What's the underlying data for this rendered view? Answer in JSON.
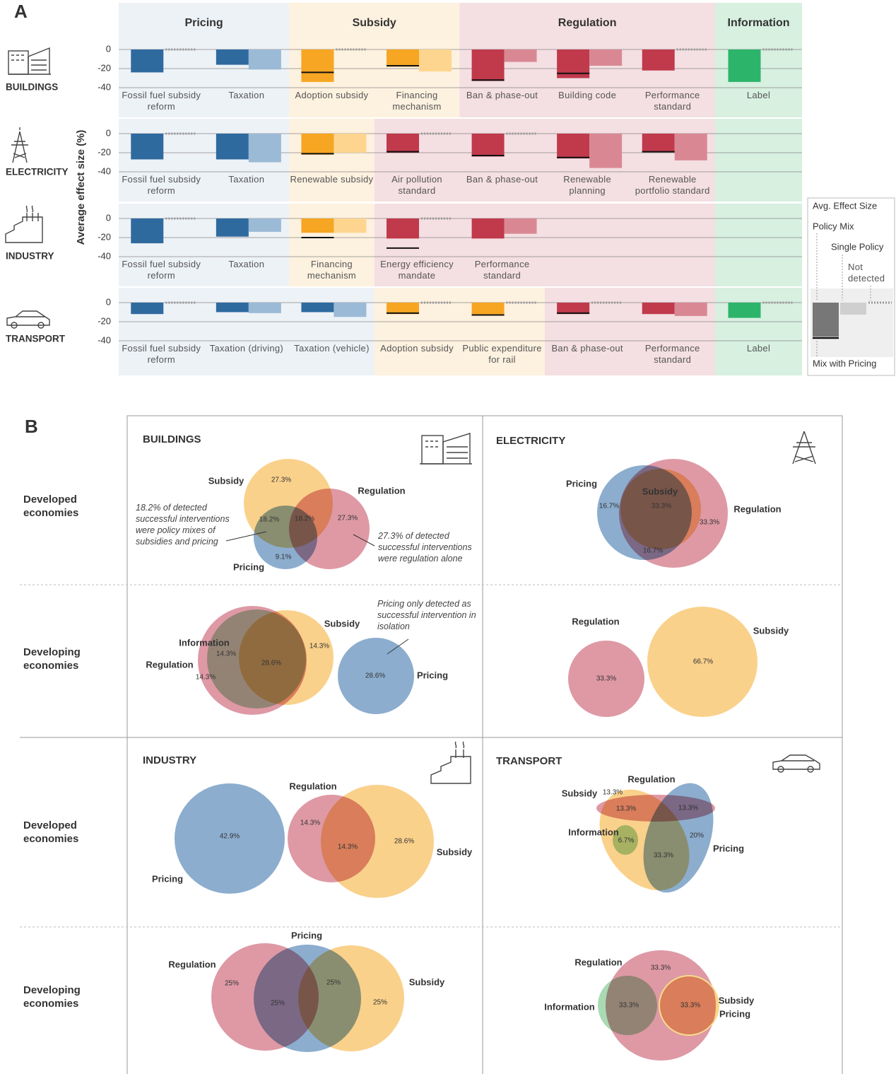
{
  "chart_data": {
    "type": "bar",
    "panel": "A",
    "y_label": "Average effect size (%)",
    "ylim": [
      -40,
      0
    ],
    "yticks": [
      0,
      -20,
      -40
    ],
    "grid": true,
    "groups": [
      "Pricing",
      "Subsidy",
      "Regulation",
      "Information"
    ],
    "group_colors": [
      {
        "mix": "#2f6a9f",
        "single": "#9bbad6",
        "background": "#edf2f7"
      },
      {
        "mix": "#f6a623",
        "single": "#fdd58e",
        "background": "#fdf1df"
      },
      {
        "mix": "#c03a4c",
        "single": "#d98893",
        "background": "#f4dfe2"
      },
      {
        "mix": "#2db46b",
        "single": "#9ddbb5",
        "background": "#d7f0e0"
      }
    ],
    "legend": {
      "title": "Avg. Effect Size",
      "policy_mix": "Policy Mix",
      "single_policy": "Single Policy",
      "not_detected": "Not detected",
      "mix_with_pricing": "Mix with Pricing"
    },
    "rows": [
      {
        "sector": "BUILDINGS",
        "groups": [
          {
            "categories": [
              "Fossil fuel subsidy reform",
              "Taxation"
            ],
            "mix": [
              -24,
              -16
            ],
            "single": [
              null,
              -21
            ],
            "mix_with_pricing": [
              null,
              null
            ]
          },
          {
            "categories": [
              "Adoption subsidy",
              "Financing mechanism"
            ],
            "mix": [
              -34,
              -18
            ],
            "single": [
              null,
              -23
            ],
            "mix_with_pricing": [
              -24,
              -17
            ]
          },
          {
            "categories": [
              "Ban & phase-out",
              "Building code",
              "Performance standard"
            ],
            "mix": [
              -33,
              -30,
              -22
            ],
            "single": [
              -13,
              -17,
              null
            ],
            "mix_with_pricing": [
              -32,
              -25,
              null
            ]
          },
          {
            "categories": [
              "Label"
            ],
            "mix": [
              -34
            ],
            "single": [
              null
            ],
            "mix_with_pricing": [
              null
            ]
          }
        ]
      },
      {
        "sector": "ELECTRICITY",
        "groups": [
          {
            "categories": [
              "Fossil fuel subsidy reform",
              "Taxation"
            ],
            "mix": [
              -27,
              -27
            ],
            "single": [
              null,
              -30
            ],
            "mix_with_pricing": [
              null,
              null
            ]
          },
          {
            "categories": [
              "Renewable subsidy"
            ],
            "mix": [
              -22
            ],
            "single": [
              -20
            ],
            "mix_with_pricing": [
              -21
            ]
          },
          {
            "categories": [
              "Air pollution standard",
              "Ban & phase-out",
              "Renewable planning",
              "Renewable portfolio standard"
            ],
            "mix": [
              -20,
              -24,
              -26,
              -19
            ],
            "single": [
              null,
              null,
              -36,
              -28
            ],
            "mix_with_pricing": [
              -19,
              -23,
              -25,
              -19
            ]
          },
          {
            "categories": [],
            "mix": [],
            "single": [],
            "mix_with_pricing": []
          }
        ]
      },
      {
        "sector": "INDUSTRY",
        "groups": [
          {
            "categories": [
              "Fossil fuel subsidy reform",
              "Taxation"
            ],
            "mix": [
              -26,
              -19
            ],
            "single": [
              null,
              -14
            ],
            "mix_with_pricing": [
              null,
              null
            ]
          },
          {
            "categories": [
              "Financing mechanism"
            ],
            "mix": [
              -15
            ],
            "single": [
              -15
            ],
            "mix_with_pricing": [
              -20
            ]
          },
          {
            "categories": [
              "Energy efficiency mandate",
              "Performance standard"
            ],
            "mix": [
              -21,
              -21
            ],
            "single": [
              null,
              -16
            ],
            "mix_with_pricing": [
              -31,
              null
            ]
          },
          {
            "categories": [],
            "mix": [],
            "single": [],
            "mix_with_pricing": []
          }
        ]
      },
      {
        "sector": "TRANSPORT",
        "groups": [
          {
            "categories": [
              "Fossil fuel subsidy reform",
              "Taxation (driving)",
              "Taxation (vehicle)"
            ],
            "mix": [
              -12,
              -10,
              -10
            ],
            "single": [
              null,
              -11,
              -15
            ],
            "mix_with_pricing": [
              null,
              null,
              null
            ]
          },
          {
            "categories": [
              "Adoption subsidy",
              "Public expenditure for rail"
            ],
            "mix": [
              -12,
              -13
            ],
            "single": [
              null,
              null
            ],
            "mix_with_pricing": [
              -11,
              -13
            ]
          },
          {
            "categories": [
              "Ban & phase-out",
              "Performance standard"
            ],
            "mix": [
              -12,
              -12
            ],
            "single": [
              null,
              -14
            ],
            "mix_with_pricing": [
              -11,
              null
            ]
          },
          {
            "categories": [
              "Label"
            ],
            "mix": [
              -16
            ],
            "single": [
              null
            ],
            "mix_with_pricing": [
              null
            ]
          }
        ]
      }
    ]
  },
  "venn": {
    "panel": "B",
    "set_colors": {
      "Pricing": "#6f99c2",
      "Subsidy": "#f9c66e",
      "Regulation": "#d6808f",
      "Information": "#93d1a0"
    },
    "row_labels": [
      "Developed economies",
      "Developing economies"
    ],
    "diagrams": [
      {
        "title": "BUILDINGS",
        "sets": [
          "Subsidy",
          "Regulation",
          "Pricing"
        ],
        "regions": [
          "27.3%",
          "18.2%",
          "18.2%",
          "27.3%",
          "9.1%"
        ],
        "notes": [
          "18.2% of detected successful interventions were policy mixes of subsidies and pricing",
          "27.3% of detected successful interventions were regulation alone"
        ]
      },
      {
        "title": "ELECTRICITY",
        "sets": [
          "Pricing",
          "Subsidy",
          "Regulation"
        ],
        "regions": [
          "16.7%",
          "33.3%",
          "33.3%",
          "16.7%"
        ],
        "notes": []
      },
      {
        "sets": [
          "Information",
          "Regulation",
          "Subsidy",
          "Pricing"
        ],
        "regions": [
          "14.3%",
          "28.6%",
          "14.3%",
          "14.3%",
          "28.6%"
        ],
        "notes": [
          "Pricing only detected as successful intervention in isolation"
        ]
      },
      {
        "sets": [
          "Regulation",
          "Subsidy"
        ],
        "regions": [
          "33.3%",
          "66.7%"
        ],
        "notes": []
      },
      {
        "title": "INDUSTRY",
        "sets": [
          "Pricing",
          "Regulation",
          "Subsidy"
        ],
        "regions": [
          "42.9%",
          "14.3%",
          "14.3%",
          "28.6%"
        ],
        "notes": []
      },
      {
        "title": "TRANSPORT",
        "sets": [
          "Subsidy",
          "Regulation",
          "Information",
          "Pricing"
        ],
        "regions": [
          "13.3%",
          "13.3%",
          "13.3%",
          "6.7%",
          "20%",
          "33.3%"
        ],
        "notes": []
      },
      {
        "sets": [
          "Pricing",
          "Regulation",
          "Subsidy"
        ],
        "regions": [
          "25%",
          "25%",
          "25%",
          "25%"
        ],
        "notes": []
      },
      {
        "sets": [
          "Regulation",
          "Information",
          "Subsidy",
          "Pricing"
        ],
        "regions": [
          "33.3%",
          "33.3%",
          "33.3%"
        ],
        "notes": []
      }
    ]
  }
}
